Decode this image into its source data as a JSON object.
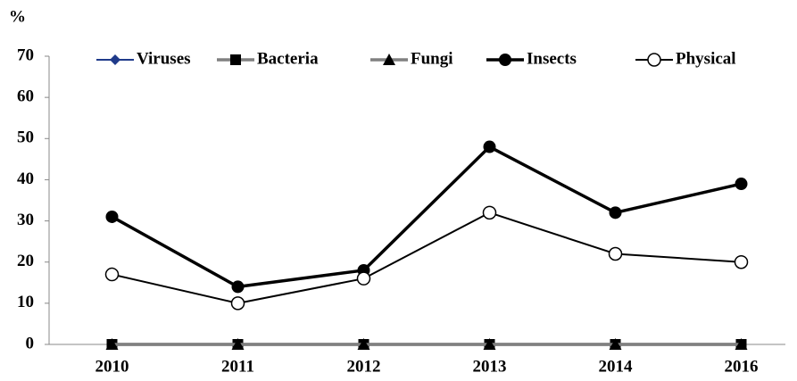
{
  "chart_data": {
    "type": "line",
    "y_label": "%",
    "categories": [
      "2010",
      "2011",
      "2012",
      "2013",
      "2014",
      "2016"
    ],
    "series": [
      {
        "name": "Viruses",
        "color": "#1f3a8a",
        "marker": "diamond",
        "values": [
          0,
          0,
          0,
          0,
          0,
          0
        ]
      },
      {
        "name": "Bacteria",
        "color": "#808080",
        "marker": "square",
        "values": [
          0,
          0,
          0,
          0,
          0,
          0
        ]
      },
      {
        "name": "Fungi",
        "color": "#808080",
        "marker": "triangle",
        "values": [
          0,
          0,
          0,
          0,
          0,
          0
        ]
      },
      {
        "name": "Insects",
        "color": "#000000",
        "marker": "circle",
        "values": [
          31,
          14,
          18,
          48,
          32,
          39
        ]
      },
      {
        "name": "Physical",
        "color": "#000000",
        "marker": "open-circle",
        "values": [
          17,
          10,
          16,
          32,
          22,
          20
        ]
      }
    ],
    "ylim": [
      0,
      70
    ],
    "yticks": [
      0,
      10,
      20,
      30,
      40,
      50,
      60,
      70
    ],
    "grid": false,
    "legend": "top"
  }
}
